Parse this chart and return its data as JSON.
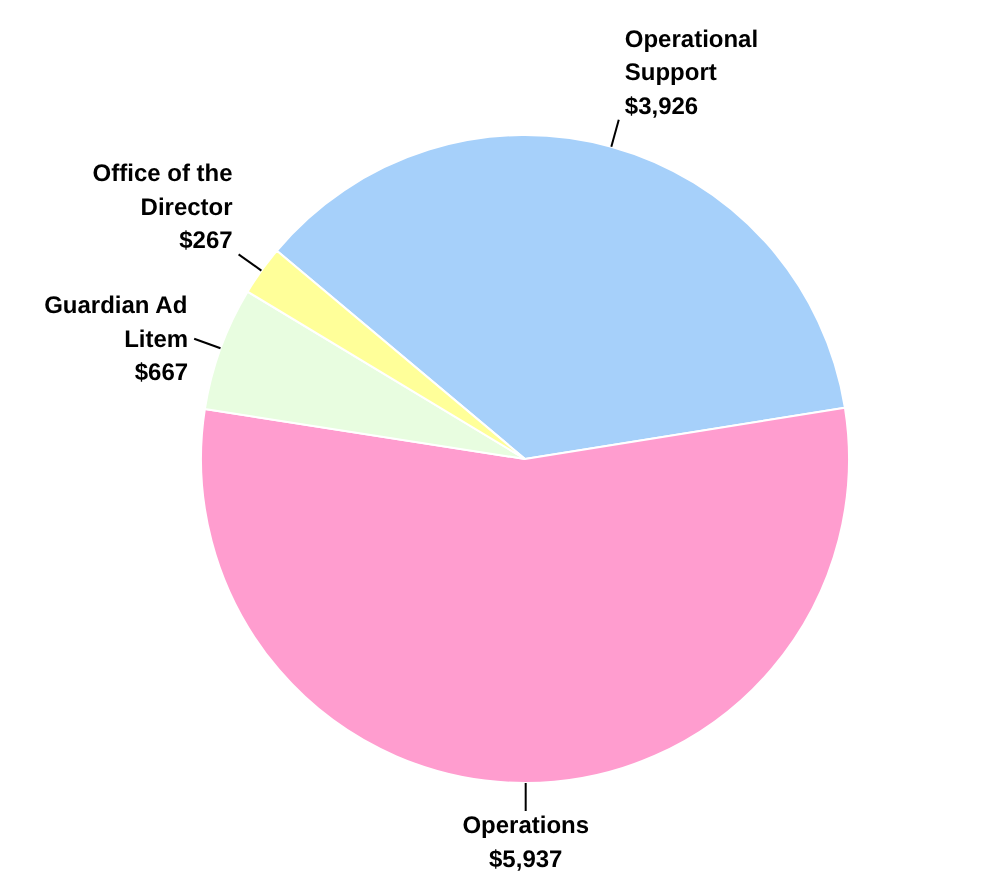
{
  "chart_data": {
    "type": "pie",
    "categories": [
      "Operational Support",
      "Operations",
      "Guardian Ad Litem",
      "Office of the Director"
    ],
    "values": [
      3926,
      5937,
      667,
      267
    ],
    "colors": [
      "#a6d0fa",
      "#ff9dcf",
      "#e8fde0",
      "#ffff99"
    ],
    "value_labels": [
      "$3,926",
      "$5,937",
      "$667",
      "$267"
    ]
  }
}
